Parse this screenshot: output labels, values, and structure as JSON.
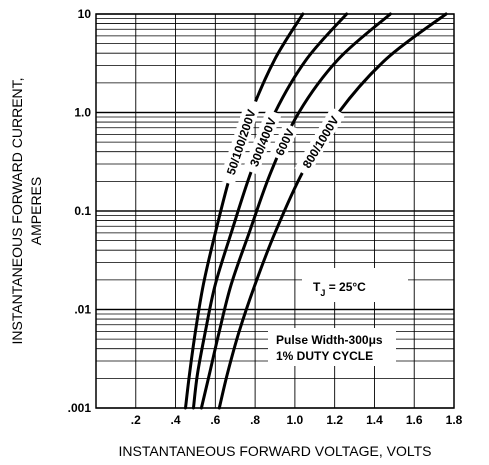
{
  "chart_data": {
    "type": "line",
    "xlabel": "INSTANTANEOUS FORWARD VOLTAGE, VOLTS",
    "ylabel_line1": "INSTANTANEOUS FORWARD CURRENT,",
    "ylabel_line2": "AMPERES",
    "xlim": [
      0,
      1.8
    ],
    "ylim": [
      0.001,
      10
    ],
    "yscale": "log",
    "grid": true,
    "x_ticks": [
      {
        "value": 0.2,
        "label": ".2"
      },
      {
        "value": 0.4,
        "label": ".4"
      },
      {
        "value": 0.6,
        "label": ".6"
      },
      {
        "value": 0.8,
        "label": ".8"
      },
      {
        "value": 1.0,
        "label": "1.0"
      },
      {
        "value": 1.2,
        "label": "1.2"
      },
      {
        "value": 1.4,
        "label": "1.4"
      },
      {
        "value": 1.6,
        "label": "1.6"
      },
      {
        "value": 1.8,
        "label": "1.8"
      }
    ],
    "y_ticks": [
      {
        "value": 0.001,
        "label": ".001"
      },
      {
        "value": 0.01,
        "label": ".01"
      },
      {
        "value": 0.1,
        "label": "0.1"
      },
      {
        "value": 1.0,
        "label": "1.0"
      },
      {
        "value": 10,
        "label": "10"
      }
    ],
    "series": [
      {
        "name": "50/100/200V",
        "points": [
          [
            0.45,
            0.001
          ],
          [
            0.47,
            0.0022
          ],
          [
            0.5,
            0.006
          ],
          [
            0.54,
            0.018
          ],
          [
            0.6,
            0.06
          ],
          [
            0.68,
            0.25
          ],
          [
            0.78,
            1.0
          ],
          [
            0.9,
            3.5
          ],
          [
            1.04,
            10
          ]
        ]
      },
      {
        "name": "300/400V",
        "points": [
          [
            0.49,
            0.001
          ],
          [
            0.51,
            0.0022
          ],
          [
            0.55,
            0.006
          ],
          [
            0.6,
            0.018
          ],
          [
            0.68,
            0.06
          ],
          [
            0.78,
            0.25
          ],
          [
            0.9,
            1.0
          ],
          [
            1.06,
            3.5
          ],
          [
            1.26,
            10
          ]
        ]
      },
      {
        "name": "600V",
        "points": [
          [
            0.53,
            0.001
          ],
          [
            0.57,
            0.0022
          ],
          [
            0.62,
            0.006
          ],
          [
            0.68,
            0.018
          ],
          [
            0.77,
            0.06
          ],
          [
            0.88,
            0.25
          ],
          [
            1.02,
            1.0
          ],
          [
            1.22,
            3.5
          ],
          [
            1.48,
            10
          ]
        ]
      },
      {
        "name": "800/1000V",
        "points": [
          [
            0.62,
            0.001
          ],
          [
            0.66,
            0.0022
          ],
          [
            0.72,
            0.006
          ],
          [
            0.8,
            0.018
          ],
          [
            0.9,
            0.06
          ],
          [
            1.04,
            0.25
          ],
          [
            1.22,
            1.0
          ],
          [
            1.46,
            3.5
          ],
          [
            1.76,
            10
          ]
        ]
      }
    ],
    "annotations": {
      "tj_prefix": "T",
      "tj_sub": "J",
      "tj_rest": " = 25°C",
      "pulse_line1": "Pulse Width-300μs",
      "pulse_line2": "1% DUTY CYCLE"
    }
  }
}
